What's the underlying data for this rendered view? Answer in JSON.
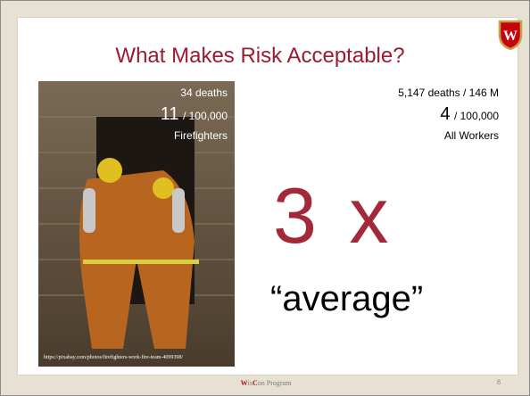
{
  "slide": {
    "title": "What Makes Risk Acceptable?",
    "photo": {
      "deaths": "34 deaths",
      "rate": "11",
      "per": "/ 100,000",
      "group": "Firefighters",
      "credit": "https://pixabay.com/photos/firefighters-work-fire-team-4099398/"
    },
    "comparison": {
      "deaths": "5,147 deaths / 146 M",
      "rate": "4",
      "per": "/ 100,000",
      "group": "All Workers"
    },
    "multiplier": "3 x",
    "caption": "“average”",
    "footer": {
      "brand": [
        "W",
        "is",
        "C",
        "on",
        " Program"
      ],
      "page": "8"
    }
  }
}
